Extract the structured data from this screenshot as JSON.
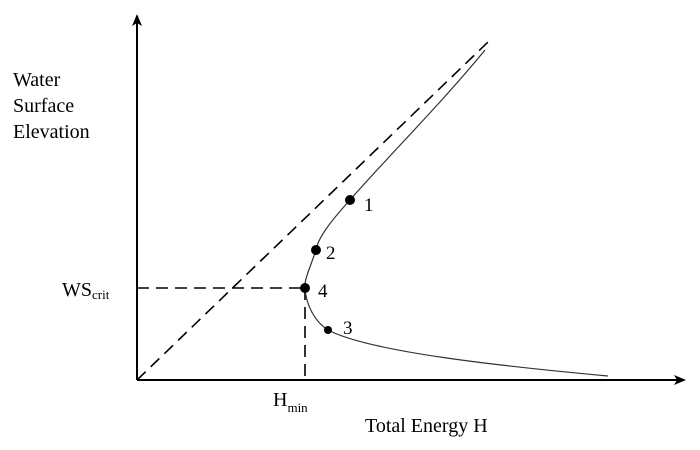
{
  "diagram": {
    "y_axis_label_lines": [
      "Water",
      "Surface",
      "Elevation"
    ],
    "x_axis_label": "Total Energy H",
    "ws_crit": {
      "main": "WS",
      "sub": "crit"
    },
    "h_min": {
      "main": "H",
      "sub": "min"
    },
    "points": [
      {
        "label": "1"
      },
      {
        "label": "2"
      },
      {
        "label": "3"
      },
      {
        "label": "4"
      }
    ],
    "colors": {
      "line": "#000000",
      "background": "#ffffff"
    }
  }
}
